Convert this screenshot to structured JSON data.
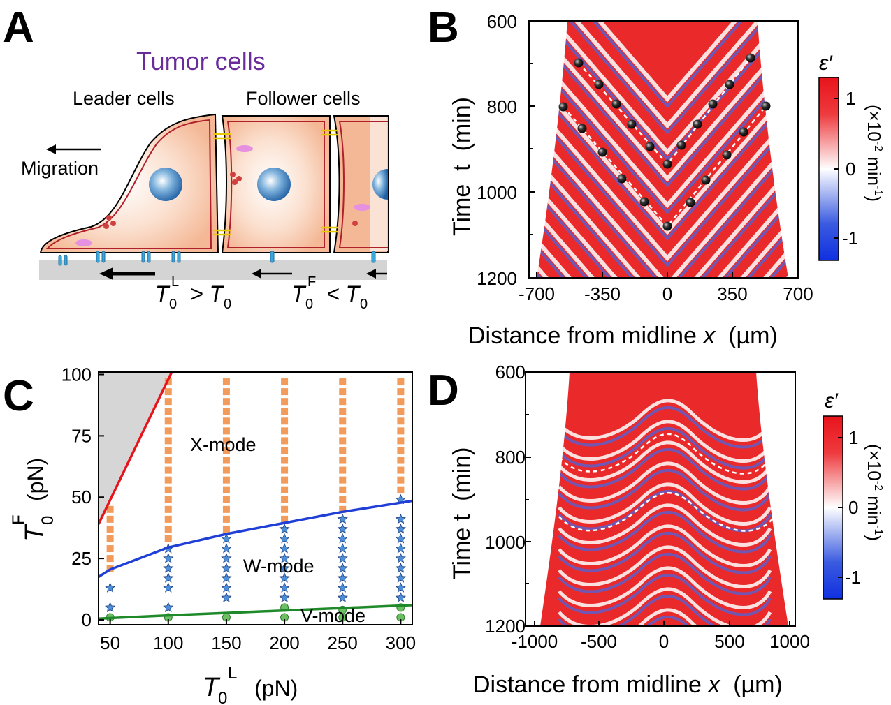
{
  "panels": {
    "A": {
      "letter": "A",
      "title": "Tumor cells",
      "leader_label": "Leader cells",
      "follower_label": "Follower cells",
      "migration_label": "Migration",
      "eq_left_sym": "T",
      "eq_left_sub": "0",
      "eq_left_sup": "L",
      "eq_left_rel": "> T",
      "eq_left_rel_sub": "0",
      "eq_right_sym": "T",
      "eq_right_sub": "0",
      "eq_right_sup": "F",
      "eq_right_rel": "< T",
      "eq_right_rel_sub": "0"
    },
    "B": {
      "letter": "B",
      "y_axis_label": "Time  t  (min)",
      "x_axis_label_main": "Distance from midline ",
      "x_axis_label_var": "x",
      "x_axis_label_unit": "  (µm)",
      "x_ticks": [
        "-700",
        "-350",
        "0",
        "350",
        "700"
      ],
      "y_ticks": [
        "600",
        "800",
        "1000",
        "1200"
      ],
      "colorbar_title": "ε′",
      "colorbar_ticks": [
        "1",
        "0",
        "-1"
      ],
      "colorbar_unit": "(×10",
      "colorbar_unit_exp": "-2",
      "colorbar_unit_tail": " min",
      "colorbar_unit_tail_exp": "-1",
      "colorbar_unit_close": ")"
    },
    "C": {
      "letter": "C",
      "mode_x": "X-mode",
      "mode_w": "W-mode",
      "mode_v": "V-mode",
      "y_axis_sym": "T",
      "y_axis_sub": "0",
      "y_axis_sup": "F",
      "y_axis_unit": "(pN)",
      "x_axis_sym": "T",
      "x_axis_sub": "0",
      "x_axis_sup": "L",
      "x_axis_unit": "(pN)"
    },
    "D": {
      "letter": "D",
      "y_axis_label": "Time t  (min)",
      "x_axis_label_main": "Distance from midline ",
      "x_axis_label_var": "x",
      "x_axis_label_unit": "  (µm)",
      "x_ticks": [
        "-1000",
        "-500",
        "0",
        "500",
        "1000"
      ],
      "y_ticks": [
        "600",
        "800",
        "1000",
        "1200"
      ],
      "colorbar_title": "ε′",
      "colorbar_ticks": [
        "1",
        "0",
        "-1"
      ],
      "colorbar_unit": "(×10",
      "colorbar_unit_exp": "-2",
      "colorbar_unit_tail": " min",
      "colorbar_unit_tail_exp": "-1",
      "colorbar_unit_close": ")"
    }
  },
  "colors": {
    "red": "#e8141b",
    "blue": "#1f3fd6",
    "orange": "#f39b5b",
    "star": "#4f8fd8",
    "green_fill": "#6cbf63",
    "green_line": "#1f8a2a",
    "grey_region": "#d6d6d6",
    "purple": "#6a2c9a",
    "cell_fill": "#f6c3a3"
  },
  "chart_data": {
    "type": "scatter",
    "xlabel": "T0L (pN)",
    "ylabel": "T0F (pN)",
    "xlim": [
      40,
      310
    ],
    "ylim": [
      -2,
      101
    ],
    "x_ticks": [
      50,
      100,
      150,
      200,
      250,
      300
    ],
    "y_ticks": [
      0,
      25,
      50,
      75,
      100
    ],
    "regions": [
      "X-mode",
      "W-mode",
      "V-mode"
    ],
    "series": [
      {
        "marker": "square",
        "color": "#f39b5b",
        "points": [
          [
            50,
            21
          ],
          [
            50,
            25
          ],
          [
            50,
            29
          ],
          [
            50,
            33
          ],
          [
            50,
            37
          ],
          [
            50,
            41
          ],
          [
            50,
            45
          ],
          [
            100,
            33
          ],
          [
            100,
            37
          ],
          [
            100,
            41
          ],
          [
            100,
            45
          ],
          [
            100,
            49
          ],
          [
            100,
            53
          ],
          [
            100,
            57
          ],
          [
            100,
            61
          ],
          [
            100,
            65
          ],
          [
            100,
            69
          ],
          [
            100,
            73
          ],
          [
            100,
            77
          ],
          [
            100,
            81
          ],
          [
            100,
            85
          ],
          [
            100,
            89
          ],
          [
            100,
            93
          ],
          [
            100,
            97
          ],
          [
            150,
            37
          ],
          [
            150,
            41
          ],
          [
            150,
            45
          ],
          [
            150,
            49
          ],
          [
            150,
            53
          ],
          [
            150,
            57
          ],
          [
            150,
            61
          ],
          [
            150,
            65
          ],
          [
            150,
            69
          ],
          [
            150,
            73
          ],
          [
            150,
            77
          ],
          [
            150,
            81
          ],
          [
            150,
            85
          ],
          [
            150,
            89
          ],
          [
            150,
            93
          ],
          [
            150,
            97
          ],
          [
            200,
            41
          ],
          [
            200,
            45
          ],
          [
            200,
            49
          ],
          [
            200,
            53
          ],
          [
            200,
            57
          ],
          [
            200,
            61
          ],
          [
            200,
            65
          ],
          [
            200,
            69
          ],
          [
            200,
            73
          ],
          [
            200,
            77
          ],
          [
            200,
            81
          ],
          [
            200,
            85
          ],
          [
            200,
            89
          ],
          [
            200,
            93
          ],
          [
            200,
            97
          ],
          [
            250,
            45
          ],
          [
            250,
            49
          ],
          [
            250,
            53
          ],
          [
            250,
            57
          ],
          [
            250,
            61
          ],
          [
            250,
            65
          ],
          [
            250,
            69
          ],
          [
            250,
            73
          ],
          [
            250,
            77
          ],
          [
            250,
            81
          ],
          [
            250,
            85
          ],
          [
            250,
            89
          ],
          [
            250,
            93
          ],
          [
            250,
            97
          ],
          [
            300,
            53
          ],
          [
            300,
            57
          ],
          [
            300,
            61
          ],
          [
            300,
            65
          ],
          [
            300,
            69
          ],
          [
            300,
            73
          ],
          [
            300,
            77
          ],
          [
            300,
            81
          ],
          [
            300,
            85
          ],
          [
            300,
            89
          ],
          [
            300,
            93
          ],
          [
            300,
            97
          ]
        ]
      },
      {
        "marker": "star",
        "color": "#4f8fd8",
        "points": [
          [
            50,
            5
          ],
          [
            50,
            13
          ],
          [
            100,
            5
          ],
          [
            100,
            13
          ],
          [
            100,
            17
          ],
          [
            100,
            21
          ],
          [
            100,
            25
          ],
          [
            100,
            29
          ],
          [
            150,
            9
          ],
          [
            150,
            13
          ],
          [
            150,
            17
          ],
          [
            150,
            21
          ],
          [
            150,
            25
          ],
          [
            150,
            29
          ],
          [
            150,
            33
          ],
          [
            200,
            9
          ],
          [
            200,
            13
          ],
          [
            200,
            17
          ],
          [
            200,
            21
          ],
          [
            200,
            25
          ],
          [
            200,
            29
          ],
          [
            200,
            33
          ],
          [
            200,
            37
          ],
          [
            250,
            9
          ],
          [
            250,
            13
          ],
          [
            250,
            17
          ],
          [
            250,
            21
          ],
          [
            250,
            25
          ],
          [
            250,
            29
          ],
          [
            250,
            33
          ],
          [
            250,
            37
          ],
          [
            250,
            41
          ],
          [
            300,
            9
          ],
          [
            300,
            13
          ],
          [
            300,
            17
          ],
          [
            300,
            21
          ],
          [
            300,
            25
          ],
          [
            300,
            29
          ],
          [
            300,
            33
          ],
          [
            300,
            37
          ],
          [
            300,
            41
          ],
          [
            300,
            49
          ]
        ]
      },
      {
        "marker": "circle",
        "color": "#6cbf63",
        "points": [
          [
            50,
            1
          ],
          [
            100,
            1
          ],
          [
            150,
            1
          ],
          [
            200,
            1
          ],
          [
            200,
            5
          ],
          [
            250,
            1
          ],
          [
            250,
            4
          ],
          [
            300,
            1
          ],
          [
            300,
            5
          ]
        ]
      }
    ],
    "lines": [
      {
        "color": "#e8141b",
        "x": [
          40,
          103
        ],
        "y": [
          39,
          101
        ]
      },
      {
        "color": "#1f3fd6",
        "x": [
          40,
          50,
          100,
          150,
          200,
          250,
          310
        ],
        "y": [
          17.5,
          20.5,
          29.5,
          35,
          39.5,
          44,
          48.5
        ]
      },
      {
        "color": "#1f8a2a",
        "x": [
          40,
          100,
          150,
          200,
          250,
          310
        ],
        "y": [
          0.5,
          1.8,
          2.8,
          3.8,
          4.8,
          6
        ]
      }
    ]
  }
}
